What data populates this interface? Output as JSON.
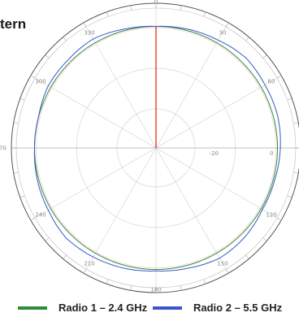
{
  "page": {
    "title_visible": "tern"
  },
  "chart_data": {
    "type": "polar-line",
    "title": "tern",
    "angle_ticks": [
      "0",
      "30",
      "60",
      "90",
      "120",
      "150",
      "180",
      "210",
      "240",
      "270",
      "300",
      "330"
    ],
    "visible_angle_labels": [
      "0",
      "30",
      "60",
      "120",
      "150",
      "180",
      "210",
      "240",
      "270",
      "300",
      "330"
    ],
    "radial_tick_labels": [
      "-20",
      "0"
    ],
    "radial_range": [
      -40,
      10
    ],
    "grid": true,
    "legend_placement": "bottom",
    "colors": {
      "pointer": "#e8392d",
      "grid": "#cfcfcf",
      "ring": "#f2d3cc"
    },
    "angles": [
      0,
      15,
      30,
      45,
      60,
      75,
      90,
      105,
      120,
      135,
      150,
      165,
      180,
      195,
      210,
      225,
      240,
      255,
      270,
      285,
      300,
      315,
      330,
      345
    ],
    "series": [
      {
        "name": "Radio 1 – 2.4 GHz",
        "color": "#2e8b3a",
        "values": [
          2.0,
          2.0,
          2.0,
          2.0,
          2.0,
          2.0,
          2.0,
          2.0,
          2.0,
          2.0,
          2.0,
          2.0,
          2.0,
          2.0,
          2.0,
          2.0,
          2.0,
          2.0,
          2.0,
          2.0,
          2.0,
          2.0,
          2.0,
          2.0
        ]
      },
      {
        "name": "Radio 2 – 5.5 GHz",
        "color": "#3a56c9",
        "values": [
          2.0,
          2.5,
          3.0,
          4.0,
          3.5,
          3.5,
          3.0,
          2.5,
          2.5,
          3.5,
          4.0,
          3.0,
          2.5,
          3.0,
          3.5,
          4.0,
          3.0,
          2.5,
          2.0,
          2.0,
          3.0,
          3.0,
          3.5,
          2.5
        ]
      }
    ]
  }
}
